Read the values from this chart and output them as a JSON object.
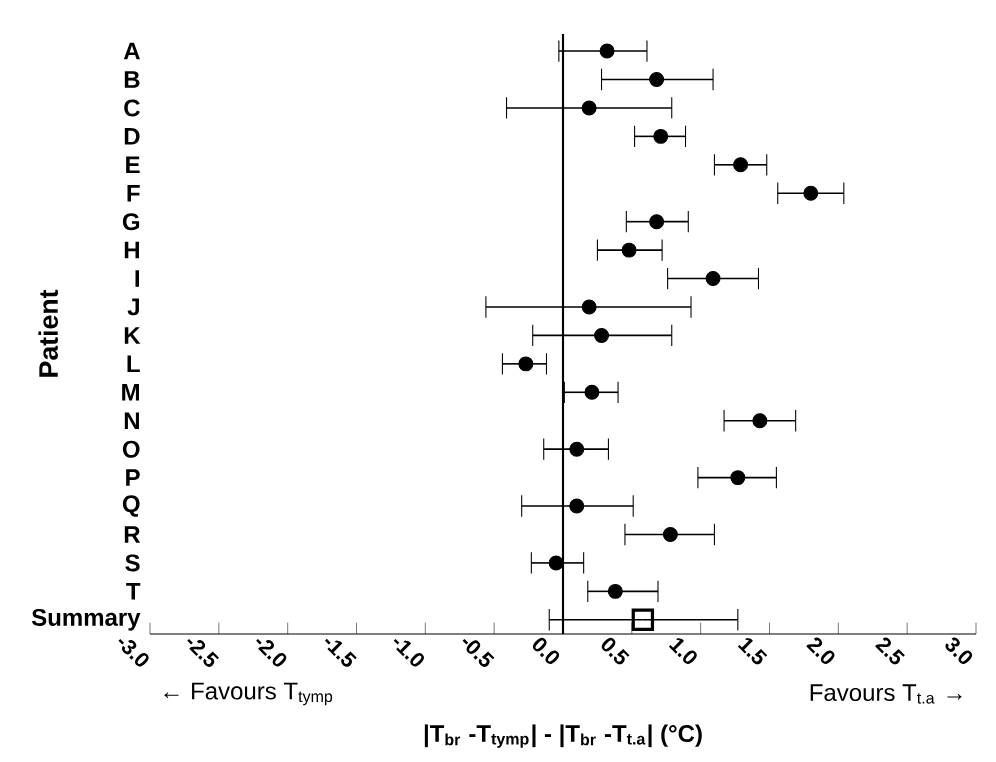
{
  "chart_data": {
    "type": "scatter",
    "orientation": "horizontal",
    "ylabel": "Patient",
    "xlabel": "|T$_{br}$ -T$_{tymp}$| - |T$_{br}$ -T$_{t.a}$| (°C)",
    "categories": [
      "A",
      "B",
      "C",
      "D",
      "E",
      "F",
      "G",
      "H",
      "I",
      "J",
      "K",
      "L",
      "M",
      "N",
      "O",
      "P",
      "Q",
      "R",
      "S",
      "T",
      "Summary"
    ],
    "series": [
      {
        "marker": "circle",
        "color": "#000000",
        "values": [
          0.32,
          0.68,
          0.19,
          0.71,
          1.29,
          1.8,
          0.68,
          0.48,
          1.09,
          0.19,
          0.28,
          -0.27,
          0.21,
          1.43,
          0.1,
          1.27,
          0.1,
          0.78,
          -0.05,
          0.38,
          null
        ],
        "errors": [
          [
            -0.03,
            0.61
          ],
          [
            0.28,
            1.09
          ],
          [
            -0.41,
            0.79
          ],
          [
            0.52,
            0.89
          ],
          [
            1.1,
            1.48
          ],
          [
            1.56,
            2.04
          ],
          [
            0.46,
            0.91
          ],
          [
            0.25,
            0.72
          ],
          [
            0.76,
            1.42
          ],
          [
            -0.56,
            0.93
          ],
          [
            -0.22,
            0.79
          ],
          [
            -0.44,
            -0.12
          ],
          [
            0.01,
            0.4
          ],
          [
            1.17,
            1.69
          ],
          [
            -0.14,
            0.33
          ],
          [
            0.98,
            1.55
          ],
          [
            -0.3,
            0.51
          ],
          [
            0.45,
            1.1
          ],
          [
            -0.23,
            0.15
          ],
          [
            0.18,
            0.69
          ],
          null
        ]
      },
      {
        "marker": "square",
        "color": "#000000",
        "values": [
          null,
          null,
          null,
          null,
          null,
          null,
          null,
          null,
          null,
          null,
          null,
          null,
          null,
          null,
          null,
          null,
          null,
          null,
          null,
          null,
          0.58
        ],
        "errors": [
          null,
          null,
          null,
          null,
          null,
          null,
          null,
          null,
          null,
          null,
          null,
          null,
          null,
          null,
          null,
          null,
          null,
          null,
          null,
          null,
          [
            -0.1,
            1.27
          ]
        ]
      }
    ],
    "xlim": [
      -3,
      3
    ],
    "xticks": [
      {
        "value": -3,
        "label": "-3.0"
      },
      {
        "value": -2.5,
        "label": "-2.5"
      },
      {
        "value": -2,
        "label": "-2.0"
      },
      {
        "value": -1.5,
        "label": "-1.5"
      },
      {
        "value": -1,
        "label": "-1.0"
      },
      {
        "value": -0.5,
        "label": "-0.5"
      },
      {
        "value": 0,
        "label": "0.0"
      },
      {
        "value": 0.5,
        "label": "0.5"
      },
      {
        "value": 1,
        "label": "1.0"
      },
      {
        "value": 1.5,
        "label": "1.5"
      },
      {
        "value": 2,
        "label": "2.0"
      },
      {
        "value": 2.5,
        "label": "2.5"
      },
      {
        "value": 3,
        "label": "3.0"
      }
    ],
    "ref_lines": [
      {
        "axis": "x",
        "value": 0,
        "color": "#000000"
      }
    ],
    "annotations": [
      "← Favours T$_{tymp}$",
      "Favours T$_{t.a}$ →"
    ],
    "grid": false
  }
}
